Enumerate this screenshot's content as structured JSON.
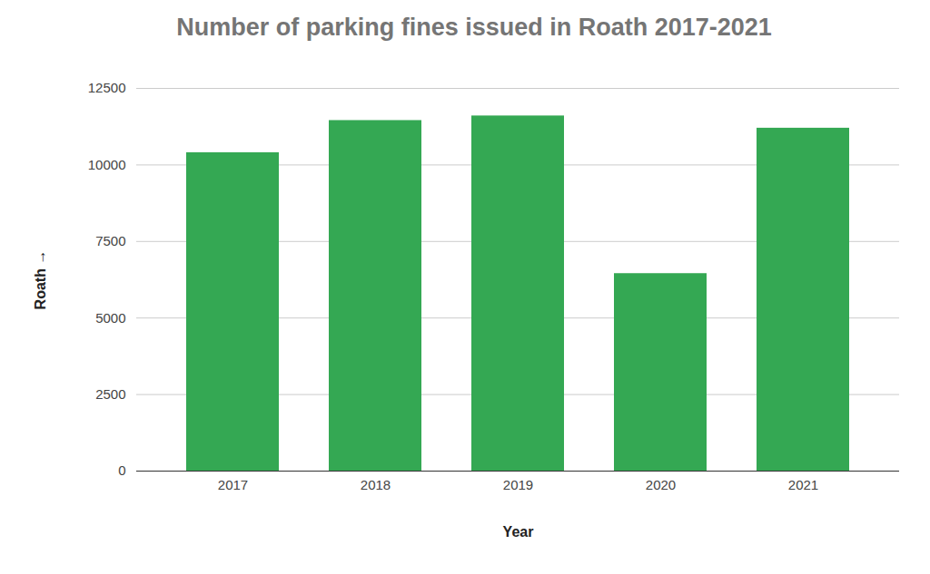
{
  "chart_data": {
    "type": "bar",
    "title": "Number of parking fines issued in Roath 2017-2021",
    "x_label": "Year",
    "y_label": "Roath",
    "categories": [
      "2017",
      "2018",
      "2019",
      "2020",
      "2021"
    ],
    "values": [
      10400,
      11450,
      11600,
      6450,
      11200
    ],
    "color": "#34a853",
    "ylim": [
      0,
      12500
    ],
    "yticks": [
      0,
      2500,
      5000,
      7500,
      10000,
      12500
    ],
    "grid": true
  }
}
